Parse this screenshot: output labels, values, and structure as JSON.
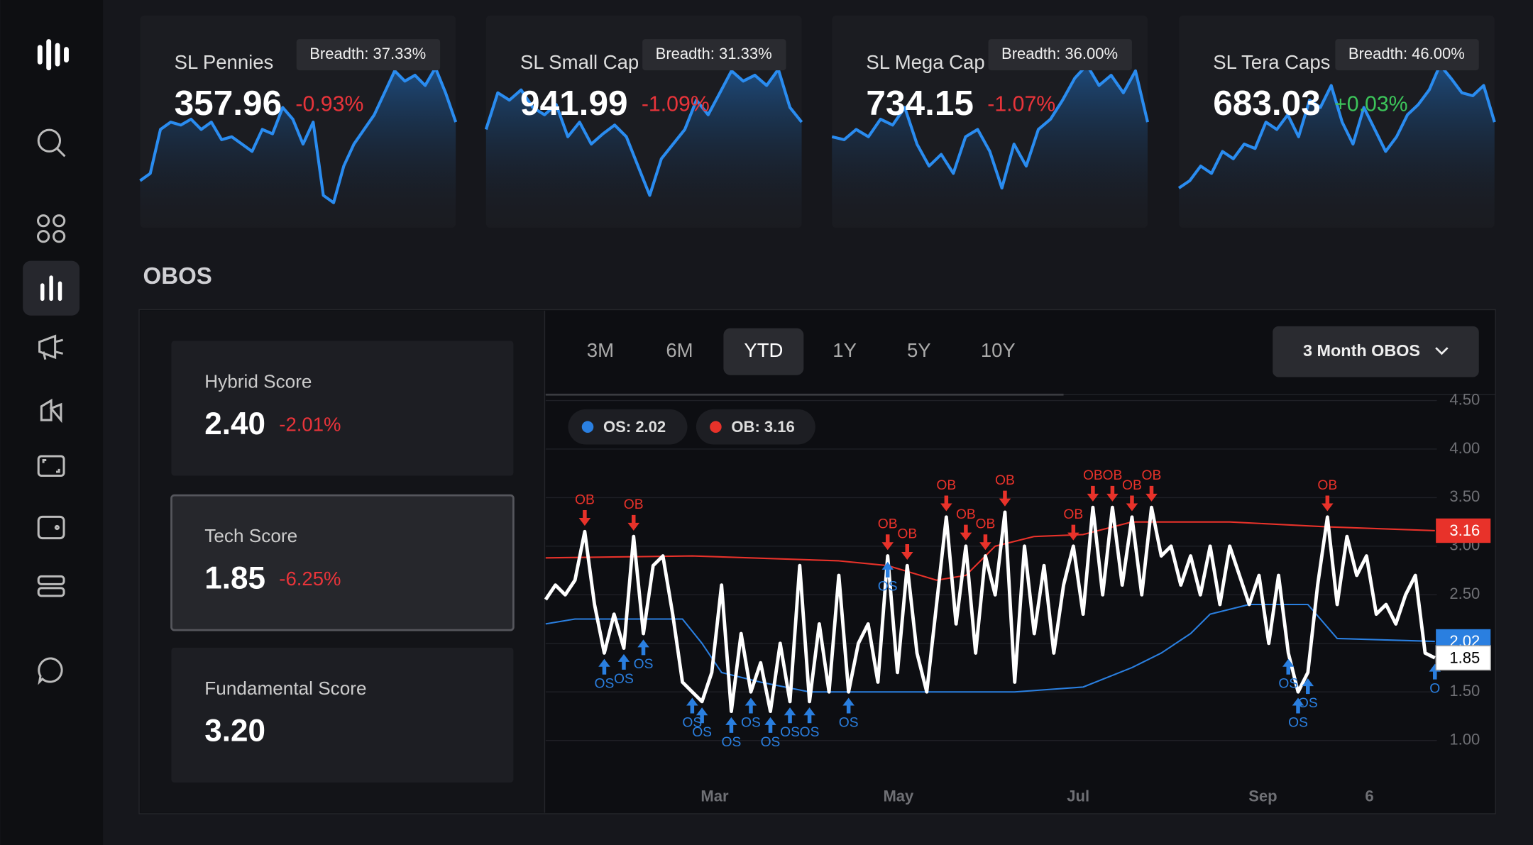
{
  "cards": [
    {
      "title": "SL Pennies",
      "value": "357.96",
      "change": "-0.93%",
      "trend": "down",
      "breadth": "Breadth: 37.33%",
      "spark": {
        "ylim": [
          0,
          100
        ],
        "values": [
          20,
          25,
          55,
          60,
          58,
          62,
          55,
          60,
          48,
          50,
          45,
          40,
          55,
          52,
          70,
          62,
          45,
          60,
          10,
          5,
          30,
          45,
          55,
          65,
          80,
          95,
          88,
          92,
          85,
          97,
          80,
          60
        ]
      }
    },
    {
      "title": "SL Small Cap",
      "value": "941.99",
      "change": "-1.09%",
      "trend": "down",
      "breadth": "Breadth: 31.33%",
      "spark": {
        "ylim": [
          0,
          100
        ],
        "values": [
          55,
          80,
          75,
          82,
          70,
          65,
          72,
          50,
          60,
          45,
          52,
          58,
          50,
          30,
          10,
          35,
          45,
          55,
          75,
          65,
          80,
          95,
          88,
          92,
          85,
          96,
          70,
          60
        ]
      }
    },
    {
      "title": "SL Mega Cap",
      "value": "734.15",
      "change": "-1.07%",
      "trend": "down",
      "breadth": "Breadth: 36.00%",
      "spark": {
        "ylim": [
          0,
          100
        ],
        "values": [
          50,
          48,
          55,
          50,
          62,
          58,
          70,
          45,
          30,
          38,
          25,
          50,
          55,
          40,
          15,
          45,
          30,
          55,
          62,
          75,
          90,
          99,
          85,
          92,
          80,
          95,
          60
        ]
      }
    },
    {
      "title": "SL Tera Caps",
      "value": "683.03",
      "change": "+0.03%",
      "trend": "up",
      "breadth": "Breadth: 46.00%",
      "spark": {
        "ylim": [
          0,
          100
        ],
        "values": [
          15,
          20,
          30,
          25,
          40,
          35,
          45,
          42,
          60,
          55,
          65,
          50,
          75,
          70,
          85,
          60,
          45,
          70,
          55,
          40,
          50,
          65,
          72,
          82,
          99,
          90,
          80,
          78,
          85,
          60
        ]
      }
    }
  ],
  "section_title": "OBOS",
  "scores": [
    {
      "title": "Hybrid Score",
      "value": "2.40",
      "change": "-2.01%"
    },
    {
      "title": "Tech Score",
      "value": "1.85",
      "change": "-6.25%"
    },
    {
      "title": "Fundamental Score",
      "value": "3.20"
    }
  ],
  "tabs": [
    "3M",
    "6M",
    "YTD",
    "1Y",
    "5Y",
    "10Y"
  ],
  "active_tab": "YTD",
  "dropdown": "3 Month OBOS",
  "chart_data": {
    "type": "line",
    "ylim": [
      1,
      4.5
    ],
    "yticks": [
      {
        "value": 1,
        "label": "1.00"
      },
      {
        "value": 1.5,
        "label": "1.50"
      },
      {
        "value": 2,
        "label": "2.00"
      },
      {
        "value": 2.5,
        "label": "2.50"
      },
      {
        "value": 3,
        "label": "3.00"
      },
      {
        "value": 3.5,
        "label": "3.50"
      },
      {
        "value": 4,
        "label": "4.00"
      },
      {
        "value": 4.5,
        "label": "4.50"
      }
    ],
    "xlim": [
      0,
      91
    ],
    "xticks": [
      {
        "value": 17.3,
        "label": "Mar"
      },
      {
        "value": 36.1,
        "label": "May"
      },
      {
        "value": 54.5,
        "label": "Jul"
      },
      {
        "value": 73.4,
        "label": "Sep"
      },
      {
        "value": 84.3,
        "label": "6"
      }
    ],
    "grid": true,
    "series": [
      {
        "name": "OB",
        "label": "OB: 3.16",
        "tag": "3.16",
        "color": "#e8322a",
        "x": [
          0,
          15,
          30,
          35,
          40,
          43,
          46,
          50,
          55,
          60,
          70,
          80,
          91
        ],
        "values": [
          2.88,
          2.9,
          2.85,
          2.8,
          2.65,
          2.7,
          3.0,
          3.1,
          3.12,
          3.25,
          3.25,
          3.2,
          3.16
        ]
      },
      {
        "name": "OS",
        "label": "OS: 2.02",
        "tag": "2.02",
        "color": "#2a7fe0",
        "x": [
          0,
          3,
          14,
          16,
          18,
          22,
          27,
          40,
          48,
          55,
          60,
          63,
          66,
          68,
          72,
          78,
          81,
          91
        ],
        "values": [
          2.2,
          2.25,
          2.25,
          2.0,
          1.7,
          1.6,
          1.5,
          1.5,
          1.5,
          1.55,
          1.75,
          1.9,
          2.1,
          2.3,
          2.4,
          2.4,
          2.05,
          2.02
        ]
      },
      {
        "name": "Tech Score",
        "tag": "1.85",
        "color": "#ffffff",
        "x": [
          0,
          1,
          2,
          3,
          4,
          5,
          6,
          7,
          8,
          9,
          10,
          11,
          12,
          13,
          14,
          15,
          16,
          17,
          18,
          19,
          20,
          21,
          22,
          23,
          24,
          25,
          26,
          27,
          28,
          29,
          30,
          31,
          32,
          33,
          34,
          35,
          36,
          37,
          38,
          39,
          40,
          41,
          42,
          43,
          44,
          45,
          46,
          47,
          48,
          49,
          50,
          51,
          52,
          53,
          54,
          55,
          56,
          57,
          58,
          59,
          60,
          61,
          62,
          63,
          64,
          65,
          66,
          67,
          68,
          69,
          70,
          71,
          72,
          73,
          74,
          75,
          76,
          77,
          78,
          79,
          80,
          81,
          82,
          83,
          84,
          85,
          86,
          87,
          88,
          89,
          90,
          91
        ],
        "values": [
          2.45,
          2.6,
          2.5,
          2.65,
          3.15,
          2.4,
          1.9,
          2.3,
          1.95,
          3.1,
          2.1,
          2.8,
          2.9,
          2.3,
          1.6,
          1.5,
          1.4,
          1.7,
          2.6,
          1.3,
          2.1,
          1.5,
          1.8,
          1.3,
          2.0,
          1.4,
          2.8,
          1.4,
          2.2,
          1.5,
          2.7,
          1.5,
          2.0,
          2.2,
          1.6,
          2.9,
          1.7,
          2.8,
          1.9,
          1.5,
          2.4,
          3.3,
          2.2,
          3.0,
          1.9,
          2.9,
          2.5,
          3.35,
          1.6,
          3.0,
          2.1,
          2.8,
          1.9,
          2.6,
          3.0,
          2.3,
          3.4,
          2.5,
          3.4,
          2.6,
          3.3,
          2.5,
          3.4,
          2.9,
          3.0,
          2.6,
          2.9,
          2.5,
          3.0,
          2.4,
          3.0,
          2.7,
          2.4,
          2.7,
          2.0,
          2.7,
          1.9,
          1.5,
          1.7,
          2.6,
          3.3,
          2.4,
          3.1,
          2.7,
          2.9,
          2.3,
          2.4,
          2.2,
          2.5,
          2.7,
          1.9,
          1.85
        ]
      }
    ],
    "markers": [
      {
        "x": 4,
        "label": "OB"
      },
      {
        "x": 9,
        "label": "OB"
      },
      {
        "x": 35,
        "label": "OB"
      },
      {
        "x": 37,
        "label": "OB"
      },
      {
        "x": 41,
        "label": "OB"
      },
      {
        "x": 43,
        "label": "OB"
      },
      {
        "x": 45,
        "label": "OB"
      },
      {
        "x": 47,
        "label": "OB"
      },
      {
        "x": 54,
        "label": "OB"
      },
      {
        "x": 56,
        "label": "OB"
      },
      {
        "x": 58,
        "label": "OB"
      },
      {
        "x": 60,
        "label": "OB"
      },
      {
        "x": 62,
        "label": "OB"
      },
      {
        "x": 80,
        "label": "OB"
      },
      {
        "x": 6,
        "label": "OS"
      },
      {
        "x": 8,
        "label": "OS"
      },
      {
        "x": 10,
        "label": "OS"
      },
      {
        "x": 15,
        "label": "OS"
      },
      {
        "x": 16,
        "label": "OS"
      },
      {
        "x": 19,
        "label": "OS"
      },
      {
        "x": 21,
        "label": "OS"
      },
      {
        "x": 23,
        "label": "OS"
      },
      {
        "x": 25,
        "label": "OS"
      },
      {
        "x": 27,
        "label": "OS"
      },
      {
        "x": 31,
        "label": "OS"
      },
      {
        "x": 35,
        "label": "OS"
      },
      {
        "x": 76,
        "label": "OS"
      },
      {
        "x": 77,
        "label": "OS"
      },
      {
        "x": 78,
        "label": "OS"
      },
      {
        "x": 91,
        "label": "O"
      }
    ]
  }
}
